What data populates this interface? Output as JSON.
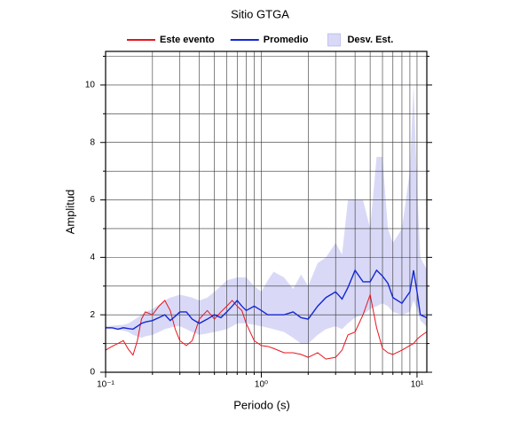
{
  "chart_data": {
    "type": "line",
    "title": "Sitio GTGA",
    "xlabel": "Periodo (s)",
    "ylabel": "Amplitud",
    "xscale": "log",
    "grid": true,
    "legend": "top",
    "x": [
      0.1,
      0.11,
      0.12,
      0.13,
      0.14,
      0.15,
      0.16,
      0.17,
      0.18,
      0.2,
      0.22,
      0.24,
      0.26,
      0.28,
      0.3,
      0.33,
      0.36,
      0.4,
      0.45,
      0.5,
      0.55,
      0.6,
      0.65,
      0.7,
      0.75,
      0.8,
      0.9,
      1,
      1.1,
      1.2,
      1.4,
      1.6,
      1.8,
      2,
      2.3,
      2.6,
      3,
      3.3,
      3.6,
      4,
      4.5,
      5,
      5.5,
      6,
      6.5,
      7,
      8,
      9,
      9.5,
      10,
      10.5,
      11.5
    ],
    "series": [
      {
        "name": "Este evento",
        "color": "#e8141c",
        "values": [
          0.77,
          0.9,
          1.0,
          1.1,
          0.8,
          0.6,
          1.1,
          1.85,
          2.1,
          2.0,
          2.3,
          2.5,
          2.15,
          1.5,
          1.1,
          0.93,
          1.1,
          1.85,
          2.15,
          1.85,
          2.1,
          2.3,
          2.5,
          2.3,
          2.15,
          1.7,
          1.1,
          0.93,
          0.9,
          0.83,
          0.68,
          0.68,
          0.62,
          0.52,
          0.68,
          0.46,
          0.52,
          0.77,
          1.3,
          1.4,
          2.0,
          2.7,
          1.55,
          0.83,
          0.68,
          0.62,
          0.77,
          0.93,
          1.0,
          1.15,
          1.25,
          1.4
        ]
      },
      {
        "name": "Promedio",
        "color": "#1428d2",
        "values": [
          1.55,
          1.55,
          1.5,
          1.55,
          1.52,
          1.5,
          1.6,
          1.7,
          1.75,
          1.8,
          1.9,
          2.0,
          1.8,
          1.95,
          2.1,
          2.1,
          1.85,
          1.7,
          1.85,
          2.0,
          1.9,
          2.1,
          2.3,
          2.5,
          2.3,
          2.15,
          2.3,
          2.15,
          2.0,
          2.0,
          2.0,
          2.1,
          1.9,
          1.85,
          2.3,
          2.6,
          2.8,
          2.55,
          2.95,
          3.55,
          3.15,
          3.15,
          3.55,
          3.35,
          3.1,
          2.6,
          2.4,
          2.8,
          3.55,
          2.8,
          2.0,
          1.9
        ]
      }
    ],
    "band": {
      "name": "Desv. Est.",
      "color": "#d9d9f7",
      "lower": [
        1.5,
        1.5,
        1.48,
        1.45,
        1.4,
        1.3,
        1.25,
        1.2,
        1.25,
        1.3,
        1.4,
        1.5,
        1.55,
        1.6,
        1.6,
        1.5,
        1.4,
        1.3,
        1.35,
        1.4,
        1.45,
        1.5,
        1.6,
        1.7,
        1.7,
        1.7,
        1.65,
        1.6,
        1.55,
        1.5,
        1.4,
        1.2,
        1.0,
        1.0,
        1.3,
        1.5,
        1.6,
        1.5,
        1.7,
        1.9,
        2.0,
        2.2,
        2.3,
        2.4,
        2.3,
        2.1,
        2.0,
        2.1,
        2.5,
        2.2,
        1.8,
        1.6
      ],
      "upper": [
        1.6,
        1.62,
        1.64,
        1.65,
        1.7,
        1.8,
        1.9,
        2.0,
        2.1,
        2.2,
        2.35,
        2.5,
        2.6,
        2.65,
        2.7,
        2.65,
        2.6,
        2.5,
        2.6,
        2.8,
        3.0,
        3.2,
        3.25,
        3.3,
        3.3,
        3.3,
        3.0,
        2.8,
        3.2,
        3.5,
        3.3,
        2.9,
        3.4,
        3.0,
        3.8,
        4.0,
        4.5,
        4.1,
        6.0,
        6.0,
        6.0,
        5.0,
        7.5,
        7.5,
        5.0,
        4.5,
        5.0,
        7.0,
        10.0,
        6.5,
        4.0,
        3.6
      ]
    },
    "xlim": [
      0.1,
      11.56
    ],
    "ylim": [
      0,
      11.17
    ],
    "xticks": [
      {
        "value": 0.1,
        "label": "10⁻¹"
      },
      {
        "value": 1,
        "label": "10⁰"
      },
      {
        "value": 10,
        "label": "10¹"
      }
    ],
    "xminor": [
      0.2,
      0.3,
      0.4,
      0.5,
      0.6,
      0.7,
      0.8,
      0.9,
      2,
      3,
      4,
      5,
      6,
      7,
      8,
      9
    ],
    "yticks": [
      0,
      2,
      4,
      6,
      8,
      10
    ],
    "yminor": [
      1,
      3,
      5,
      7,
      9,
      11
    ]
  }
}
